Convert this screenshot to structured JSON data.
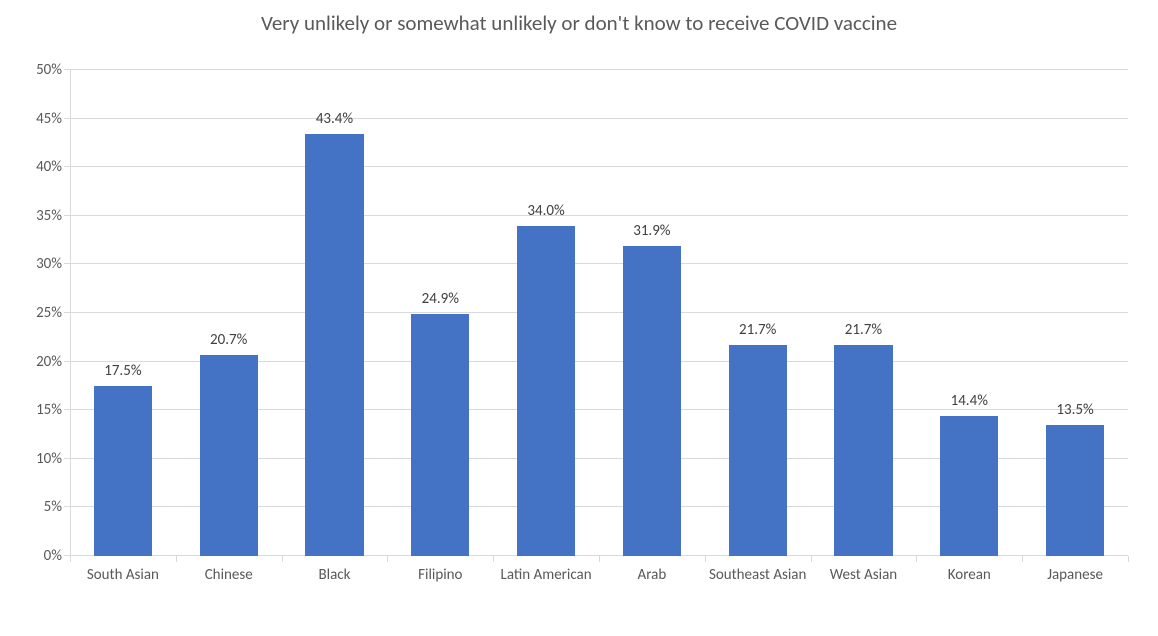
{
  "chart": {
    "type": "bar",
    "title": "Very unlikely or somewhat unlikely or don't know to receive COVID vaccine",
    "title_fontsize": 21,
    "title_color": "#595959",
    "background_color": "#ffffff",
    "axis_line_color": "#d9d9d9",
    "grid_color": "#d9d9d9",
    "tick_color": "#d9d9d9",
    "axis_text_color": "#595959",
    "data_label_color": "#404040",
    "label_fontsize": 15,
    "bar_color": "#4472c4",
    "bar_width_ratio": 0.55,
    "y_axis": {
      "min": 0,
      "max": 50,
      "tick_step": 5,
      "ticks": [
        {
          "v": 0,
          "label": "0%"
        },
        {
          "v": 5,
          "label": "5%"
        },
        {
          "v": 10,
          "label": "10%"
        },
        {
          "v": 15,
          "label": "15%"
        },
        {
          "v": 20,
          "label": "20%"
        },
        {
          "v": 25,
          "label": "25%"
        },
        {
          "v": 30,
          "label": "30%"
        },
        {
          "v": 35,
          "label": "35%"
        },
        {
          "v": 40,
          "label": "40%"
        },
        {
          "v": 45,
          "label": "45%"
        },
        {
          "v": 50,
          "label": "50%"
        }
      ]
    },
    "categories": [
      {
        "label": "South Asian",
        "value": 17.5,
        "value_label": "17.5%"
      },
      {
        "label": "Chinese",
        "value": 20.7,
        "value_label": "20.7%"
      },
      {
        "label": "Black",
        "value": 43.4,
        "value_label": "43.4%"
      },
      {
        "label": "Filipino",
        "value": 24.9,
        "value_label": "24.9%"
      },
      {
        "label": "Latin American",
        "value": 34.0,
        "value_label": "34.0%"
      },
      {
        "label": "Arab",
        "value": 31.9,
        "value_label": "31.9%"
      },
      {
        "label": "Southeast Asian",
        "value": 21.7,
        "value_label": "21.7%"
      },
      {
        "label": "West Asian",
        "value": 21.7,
        "value_label": "21.7%"
      },
      {
        "label": "Korean",
        "value": 14.4,
        "value_label": "14.4%"
      },
      {
        "label": "Japanese",
        "value": 13.5,
        "value_label": "13.5%"
      }
    ]
  }
}
